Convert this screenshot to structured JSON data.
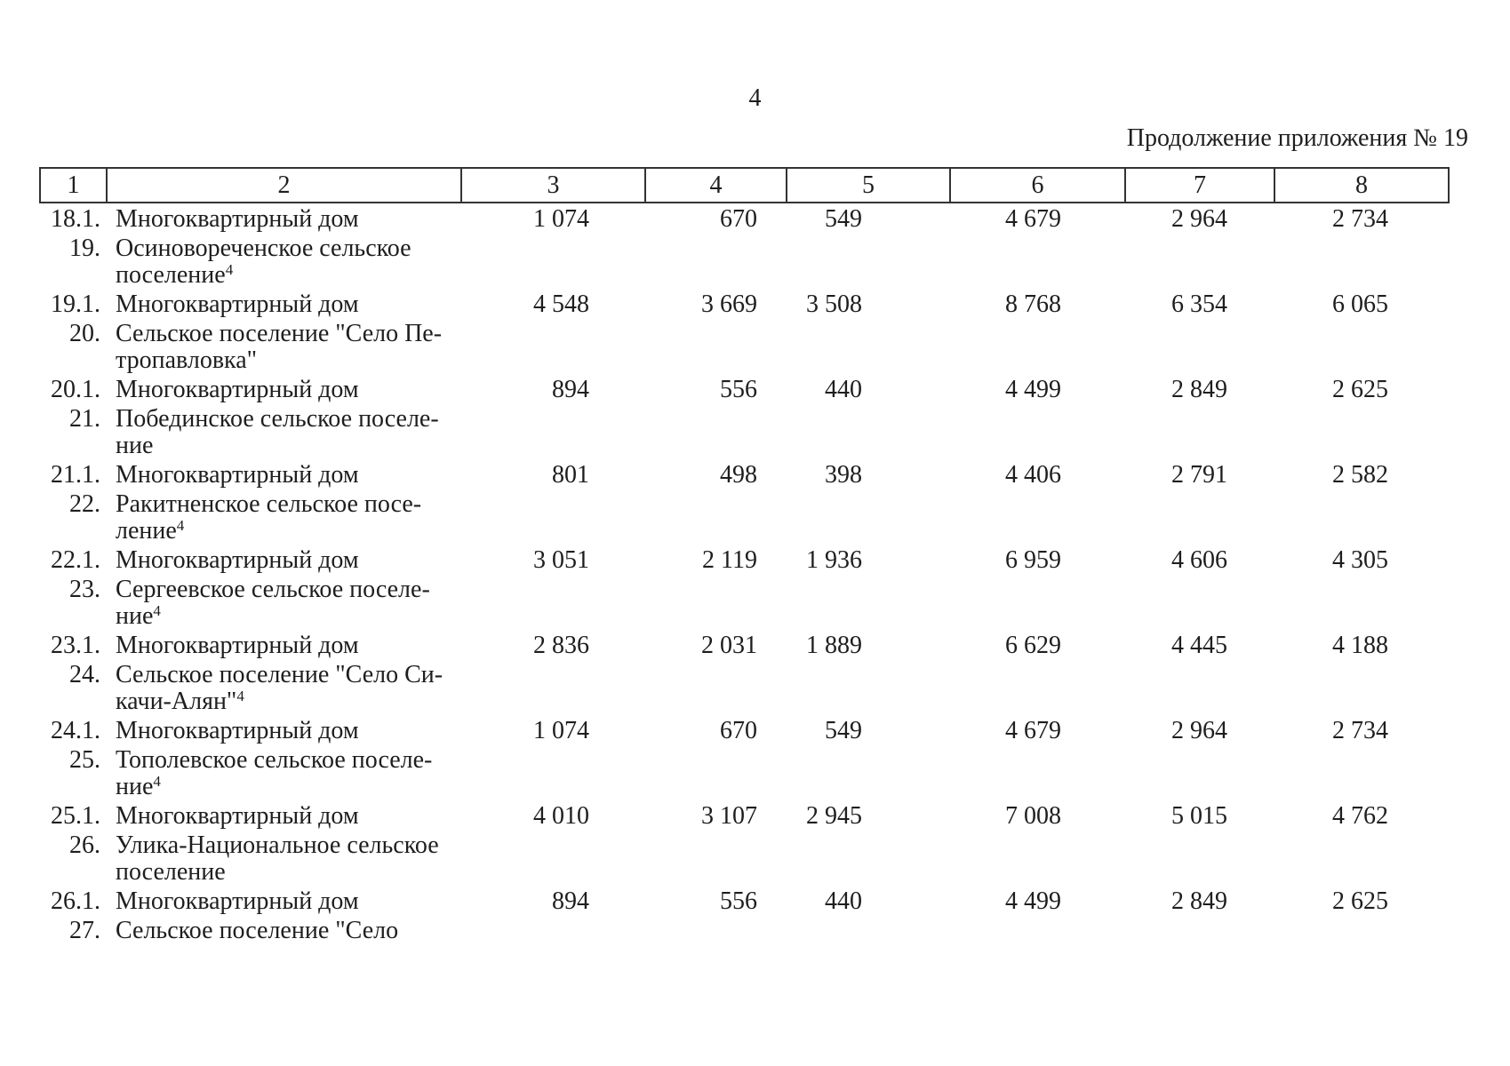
{
  "page": {
    "number": "4",
    "caption": "Продолжение приложения № 19"
  },
  "table": {
    "header_cols": [
      "1",
      "2",
      "3",
      "4",
      "5",
      "6",
      "7",
      "8"
    ],
    "rows": [
      {
        "type": "item",
        "num": "18.1.",
        "name": "Многоквартирный дом",
        "values": [
          "1 074",
          "670",
          "549",
          "4 679",
          "2 964",
          "2 734"
        ]
      },
      {
        "type": "section",
        "num": "19.",
        "name": "Осиновореченское сельское",
        "name2": "поселение",
        "sup": "4"
      },
      {
        "type": "item",
        "num": "19.1.",
        "name": "Многоквартирный дом",
        "values": [
          "4 548",
          "3 669",
          "3 508",
          "8 768",
          "6 354",
          "6 065"
        ]
      },
      {
        "type": "section",
        "num": "20.",
        "name": "Сельское поселение \"Село Пе-",
        "name2": "тропавловка\"",
        "sup": ""
      },
      {
        "type": "item",
        "num": "20.1.",
        "name": "Многоквартирный дом",
        "values": [
          "894",
          "556",
          "440",
          "4 499",
          "2 849",
          "2 625"
        ]
      },
      {
        "type": "section",
        "num": "21.",
        "name": "Побединское сельское поселе-",
        "name2": "ние",
        "sup": ""
      },
      {
        "type": "item",
        "num": "21.1.",
        "name": "Многоквартирный дом",
        "values": [
          "801",
          "498",
          "398",
          "4 406",
          "2 791",
          "2 582"
        ]
      },
      {
        "type": "section",
        "num": "22.",
        "name": "Ракитненское сельское посе-",
        "name2": "ление",
        "sup": "4"
      },
      {
        "type": "item",
        "num": "22.1.",
        "name": "Многоквартирный дом",
        "values": [
          "3 051",
          "2 119",
          "1 936",
          "6 959",
          "4 606",
          "4 305"
        ]
      },
      {
        "type": "section",
        "num": "23.",
        "name": "Сергеевское сельское поселе-",
        "name2": "ние",
        "sup": "4"
      },
      {
        "type": "item",
        "num": "23.1.",
        "name": "Многоквартирный дом",
        "values": [
          "2 836",
          "2 031",
          "1 889",
          "6 629",
          "4 445",
          "4 188"
        ]
      },
      {
        "type": "section",
        "num": "24.",
        "name": "Сельское поселение \"Село Си-",
        "name2": "качи-Алян\"",
        "sup": "4"
      },
      {
        "type": "item",
        "num": "24.1.",
        "name": "Многоквартирный дом",
        "values": [
          "1 074",
          "670",
          "549",
          "4 679",
          "2 964",
          "2 734"
        ]
      },
      {
        "type": "section",
        "num": "25.",
        "name": "Тополевское сельское поселе-",
        "name2": "ние",
        "sup": "4"
      },
      {
        "type": "item",
        "num": "25.1.",
        "name": "Многоквартирный дом",
        "values": [
          "4 010",
          "3 107",
          "2 945",
          "7 008",
          "5 015",
          "4 762"
        ]
      },
      {
        "type": "section",
        "num": "26.",
        "name": "Улика-Национальное сельское",
        "name2": "поселение",
        "sup": ""
      },
      {
        "type": "item",
        "num": "26.1.",
        "name": "Многоквартирный дом",
        "values": [
          "894",
          "556",
          "440",
          "4 499",
          "2 849",
          "2 625"
        ]
      },
      {
        "type": "section-single",
        "num": "27.",
        "name": "Сельское поселение \"Село",
        "name2": "",
        "sup": ""
      }
    ]
  }
}
